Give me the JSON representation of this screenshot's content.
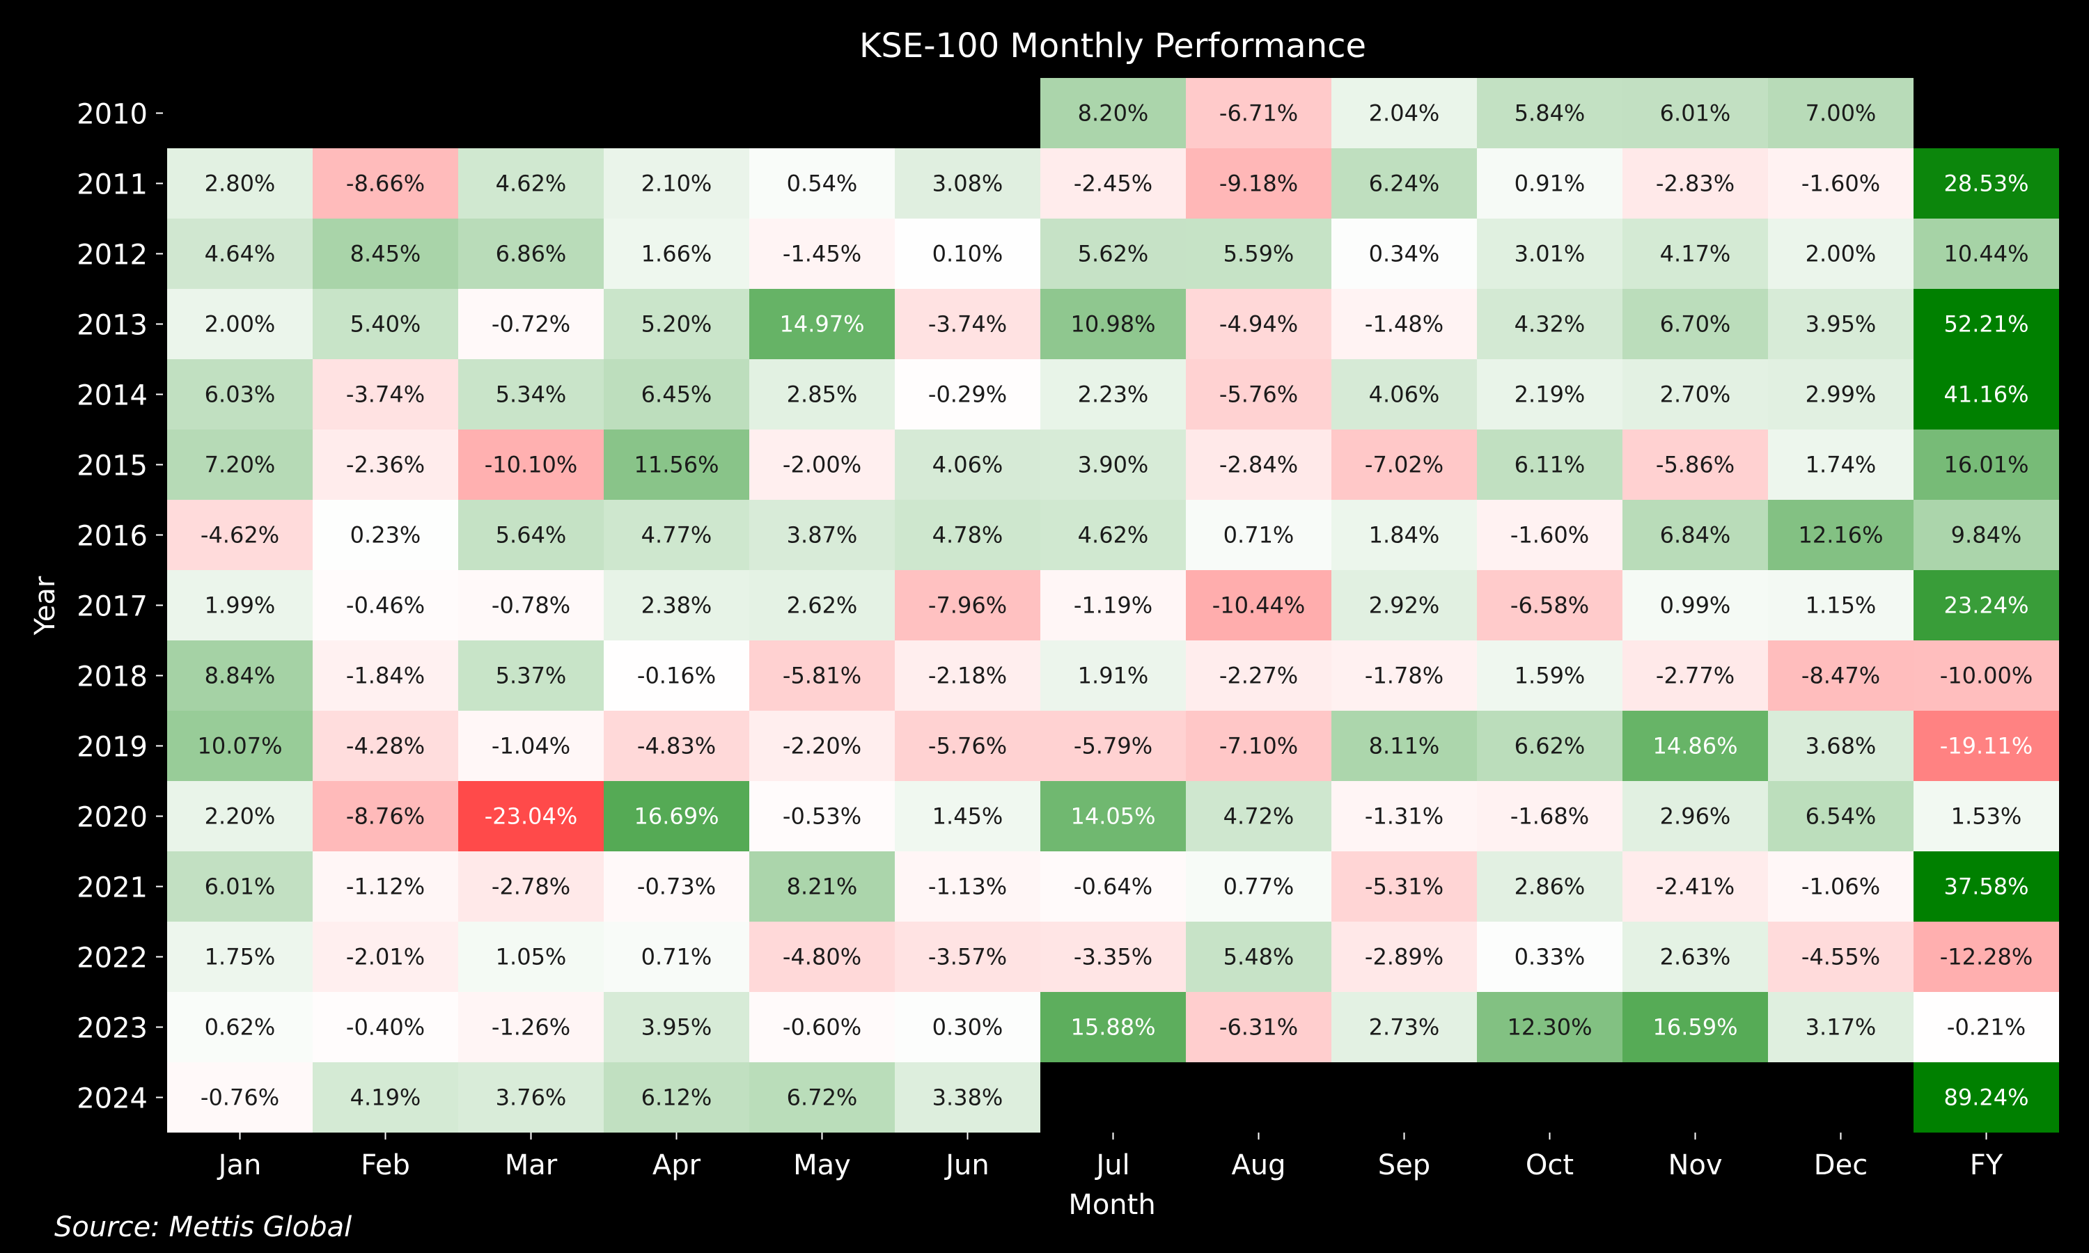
{
  "chart_data": {
    "type": "heatmap",
    "title": "KSE-100 Monthly Performance",
    "xlabel": "Month",
    "ylabel": "Year",
    "source": "Source: Mettis Global",
    "columns": [
      "Jan",
      "Feb",
      "Mar",
      "Apr",
      "May",
      "Jun",
      "Jul",
      "Aug",
      "Sep",
      "Oct",
      "Nov",
      "Dec",
      "FY"
    ],
    "rows": [
      "2010",
      "2011",
      "2012",
      "2013",
      "2014",
      "2015",
      "2016",
      "2017",
      "2018",
      "2019",
      "2020",
      "2021",
      "2022",
      "2023",
      "2024"
    ],
    "values": [
      [
        null,
        null,
        null,
        null,
        null,
        null,
        8.2,
        -6.71,
        2.04,
        5.84,
        6.01,
        7.0,
        null
      ],
      [
        2.8,
        -8.66,
        4.62,
        2.1,
        0.54,
        3.08,
        -2.45,
        -9.18,
        6.24,
        0.91,
        -2.83,
        -1.6,
        28.53
      ],
      [
        4.64,
        8.45,
        6.86,
        1.66,
        -1.45,
        0.1,
        5.62,
        5.59,
        0.34,
        3.01,
        4.17,
        2.0,
        10.44
      ],
      [
        2.0,
        5.4,
        -0.72,
        5.2,
        14.97,
        -3.74,
        10.98,
        -4.94,
        -1.48,
        4.32,
        6.7,
        3.95,
        52.21
      ],
      [
        6.03,
        -3.74,
        5.34,
        6.45,
        2.85,
        -0.29,
        2.23,
        -5.76,
        4.06,
        2.19,
        2.7,
        2.99,
        41.16
      ],
      [
        7.2,
        -2.36,
        -10.1,
        11.56,
        -2.0,
        4.06,
        3.9,
        -2.84,
        -7.02,
        6.11,
        -5.86,
        1.74,
        16.01
      ],
      [
        -4.62,
        0.23,
        5.64,
        4.77,
        3.87,
        4.78,
        4.62,
        0.71,
        1.84,
        -1.6,
        6.84,
        12.16,
        9.84
      ],
      [
        1.99,
        -0.46,
        -0.78,
        2.38,
        2.62,
        -7.96,
        -1.19,
        -10.44,
        2.92,
        -6.58,
        0.99,
        1.15,
        23.24
      ],
      [
        8.84,
        -1.84,
        5.37,
        -0.16,
        -5.81,
        -2.18,
        1.91,
        -2.27,
        -1.78,
        1.59,
        -2.77,
        -8.47,
        -10.0
      ],
      [
        10.07,
        -4.28,
        -1.04,
        -4.83,
        -2.2,
        -5.76,
        -5.79,
        -7.1,
        8.11,
        6.62,
        14.86,
        3.68,
        -19.11
      ],
      [
        2.2,
        -8.76,
        -23.04,
        16.69,
        -0.53,
        1.45,
        14.05,
        4.72,
        -1.31,
        -1.68,
        2.96,
        6.54,
        1.53
      ],
      [
        6.01,
        -1.12,
        -2.78,
        -0.73,
        8.21,
        -1.13,
        -0.64,
        0.77,
        -5.31,
        2.86,
        -2.41,
        -1.06,
        37.58
      ],
      [
        1.75,
        -2.01,
        1.05,
        0.71,
        -4.8,
        -3.57,
        -3.35,
        5.48,
        -2.89,
        0.33,
        2.63,
        -4.55,
        -12.28
      ],
      [
        0.62,
        -0.4,
        -1.26,
        3.95,
        -0.6,
        0.3,
        15.88,
        -6.31,
        2.73,
        12.3,
        16.59,
        3.17,
        -0.21
      ],
      [
        -0.76,
        4.19,
        3.76,
        6.12,
        6.72,
        3.38,
        null,
        null,
        null,
        null,
        null,
        null,
        89.24
      ]
    ],
    "value_format": "percent, 2 decimals",
    "colors": {
      "background": "#000000",
      "positive_max": "#008000",
      "neutral": "#ffffff",
      "negative_max": "#ff3b3b",
      "text_dark": "#1a1a1a",
      "text_light": "#ffffff"
    },
    "color_scale": {
      "monthly_limit": 25,
      "fy_limit": 30
    }
  }
}
